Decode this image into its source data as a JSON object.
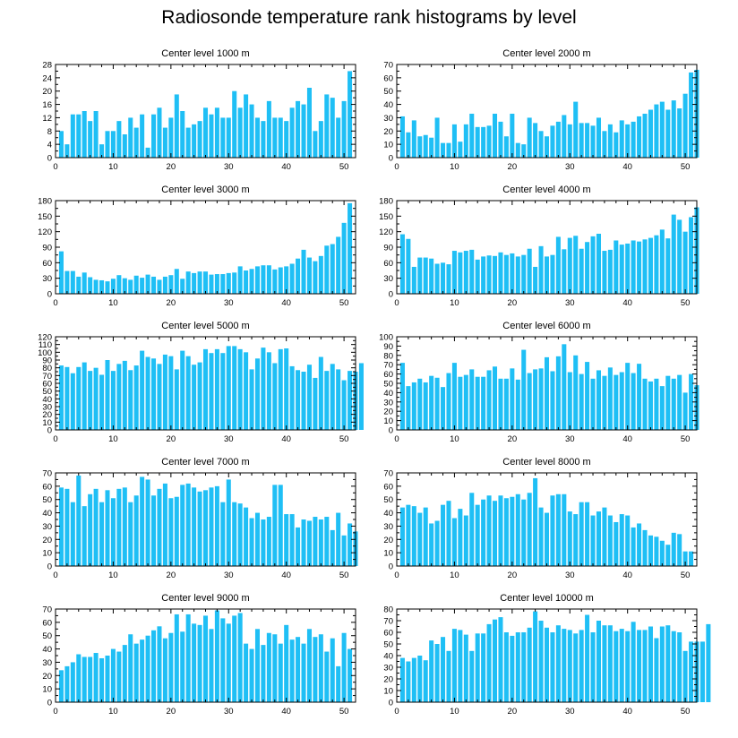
{
  "title": "Radiosonde temperature rank histograms by level",
  "colors": {
    "bar": "#1fbff5",
    "frame": "#000000"
  },
  "chart_data": [
    {
      "type": "bar",
      "title": "Center level 1000 m",
      "xlim": [
        0,
        52
      ],
      "ylim": [
        0,
        28
      ],
      "xticks": [
        0,
        10,
        20,
        30,
        40,
        50
      ],
      "yticks": [
        0,
        4,
        8,
        12,
        16,
        20,
        24,
        28
      ],
      "values": [
        8,
        4,
        13,
        13,
        14,
        11,
        14,
        4,
        8,
        8,
        11,
        7,
        12,
        9,
        13,
        3,
        13,
        15,
        9,
        12,
        19,
        14,
        9,
        10,
        11,
        15,
        13,
        15,
        12,
        12,
        20,
        15,
        19,
        16,
        12,
        11,
        17,
        12,
        12,
        11,
        15,
        17,
        16,
        21,
        8,
        11,
        19,
        18,
        12,
        17,
        26
      ]
    },
    {
      "type": "bar",
      "title": "Center level 2000 m",
      "xlim": [
        0,
        52
      ],
      "ylim": [
        0,
        70
      ],
      "xticks": [
        0,
        10,
        20,
        30,
        40,
        50
      ],
      "yticks": [
        0,
        10,
        20,
        30,
        40,
        50,
        60,
        70
      ],
      "values": [
        31,
        19,
        28,
        16,
        17,
        15,
        30,
        11,
        11,
        25,
        12,
        25,
        33,
        23,
        23,
        24,
        33,
        27,
        16,
        33,
        11,
        10,
        30,
        26,
        20,
        16,
        24,
        27,
        32,
        25,
        42,
        26,
        26,
        24,
        30,
        20,
        25,
        19,
        28,
        25,
        27,
        31,
        33,
        36,
        40,
        42,
        36,
        43,
        37,
        48,
        64,
        66
      ]
    },
    {
      "type": "bar",
      "title": "Center level 3000 m",
      "xlim": [
        0,
        52
      ],
      "ylim": [
        0,
        180
      ],
      "xticks": [
        0,
        10,
        20,
        30,
        40,
        50
      ],
      "yticks": [
        0,
        30,
        60,
        90,
        120,
        150,
        180
      ],
      "values": [
        82,
        44,
        44,
        33,
        41,
        32,
        27,
        26,
        24,
        29,
        36,
        30,
        27,
        35,
        31,
        37,
        33,
        27,
        33,
        36,
        48,
        29,
        43,
        40,
        43,
        43,
        37,
        38,
        38,
        40,
        41,
        53,
        45,
        48,
        53,
        55,
        55,
        47,
        51,
        53,
        58,
        68,
        85,
        70,
        63,
        73,
        93,
        96,
        110,
        137,
        175
      ]
    },
    {
      "type": "bar",
      "title": "Center level 4000 m",
      "xlim": [
        0,
        52
      ],
      "ylim": [
        0,
        180
      ],
      "xticks": [
        0,
        10,
        20,
        30,
        40,
        50
      ],
      "yticks": [
        0,
        30,
        60,
        90,
        120,
        150,
        180
      ],
      "values": [
        115,
        106,
        52,
        70,
        70,
        68,
        58,
        60,
        57,
        83,
        80,
        83,
        85,
        66,
        72,
        74,
        73,
        80,
        75,
        78,
        72,
        75,
        87,
        52,
        92,
        72,
        75,
        110,
        86,
        108,
        112,
        87,
        100,
        111,
        116,
        83,
        85,
        103,
        95,
        97,
        103,
        101,
        105,
        108,
        113,
        124,
        107,
        153,
        143,
        120,
        148,
        167
      ]
    },
    {
      "type": "bar",
      "title": "Center level 5000 m",
      "xlim": [
        0,
        52
      ],
      "ylim": [
        0,
        120
      ],
      "xticks": [
        0,
        10,
        20,
        30,
        40,
        50
      ],
      "yticks": [
        0,
        10,
        20,
        30,
        40,
        50,
        60,
        70,
        80,
        90,
        100,
        110,
        120
      ],
      "values": [
        83,
        81,
        73,
        81,
        87,
        76,
        80,
        71,
        90,
        76,
        85,
        89,
        77,
        83,
        102,
        94,
        92,
        85,
        97,
        95,
        78,
        102,
        95,
        84,
        87,
        104,
        99,
        104,
        99,
        108,
        108,
        104,
        100,
        78,
        92,
        106,
        100,
        86,
        104,
        105,
        82,
        77,
        75,
        84,
        67,
        94,
        76,
        85,
        78,
        64,
        76,
        75,
        86
      ]
    },
    {
      "type": "bar",
      "title": "Center level 6000 m",
      "xlim": [
        0,
        52
      ],
      "ylim": [
        0,
        100
      ],
      "xticks": [
        0,
        10,
        20,
        30,
        40,
        50
      ],
      "yticks": [
        0,
        10,
        20,
        30,
        40,
        50,
        60,
        70,
        80,
        90,
        100
      ],
      "values": [
        72,
        47,
        51,
        55,
        51,
        58,
        56,
        46,
        61,
        72,
        57,
        59,
        65,
        57,
        57,
        64,
        68,
        55,
        55,
        66,
        54,
        86,
        61,
        65,
        66,
        78,
        63,
        79,
        92,
        62,
        80,
        60,
        73,
        55,
        64,
        58,
        67,
        59,
        62,
        72,
        61,
        71,
        55,
        52,
        55,
        47,
        58,
        55,
        59,
        40,
        60,
        48
      ]
    },
    {
      "type": "bar",
      "title": "Center level 7000 m",
      "xlim": [
        0,
        52
      ],
      "ylim": [
        0,
        70
      ],
      "xticks": [
        0,
        10,
        20,
        30,
        40,
        50
      ],
      "yticks": [
        0,
        10,
        20,
        30,
        40,
        50,
        60,
        70
      ],
      "values": [
        59,
        58,
        48,
        68,
        45,
        54,
        58,
        48,
        57,
        51,
        58,
        59,
        48,
        53,
        67,
        65,
        53,
        58,
        62,
        51,
        52,
        61,
        62,
        59,
        56,
        57,
        59,
        60,
        48,
        65,
        48,
        47,
        44,
        36,
        40,
        35,
        37,
        61,
        61,
        39,
        39,
        29,
        35,
        34,
        37,
        35,
        37,
        27,
        40,
        23,
        32,
        26
      ]
    },
    {
      "type": "bar",
      "title": "Center level 8000 m",
      "xlim": [
        0,
        52
      ],
      "ylim": [
        0,
        70
      ],
      "xticks": [
        0,
        10,
        20,
        30,
        40,
        50
      ],
      "yticks": [
        0,
        10,
        20,
        30,
        40,
        50,
        60,
        70
      ],
      "values": [
        44,
        46,
        45,
        40,
        44,
        32,
        34,
        46,
        49,
        36,
        43,
        38,
        55,
        46,
        50,
        53,
        49,
        53,
        51,
        52,
        54,
        50,
        55,
        66,
        44,
        40,
        53,
        54,
        54,
        41,
        39,
        48,
        48,
        38,
        41,
        44,
        38,
        33,
        39,
        38,
        29,
        32,
        27,
        23,
        22,
        19,
        16,
        25,
        24,
        11,
        11
      ]
    },
    {
      "type": "bar",
      "title": "Center level 9000 m",
      "xlim": [
        0,
        52
      ],
      "ylim": [
        0,
        70
      ],
      "xticks": [
        0,
        10,
        20,
        30,
        40,
        50
      ],
      "yticks": [
        0,
        10,
        20,
        30,
        40,
        50,
        60,
        70
      ],
      "values": [
        24,
        27,
        30,
        36,
        34,
        34,
        37,
        33,
        35,
        40,
        38,
        43,
        51,
        44,
        47,
        50,
        54,
        57,
        48,
        52,
        66,
        53,
        66,
        59,
        58,
        65,
        55,
        69,
        63,
        59,
        65,
        67,
        44,
        40,
        55,
        43,
        52,
        51,
        44,
        58,
        47,
        49,
        44,
        55,
        49,
        51,
        38,
        48,
        27,
        52,
        40
      ]
    },
    {
      "type": "bar",
      "title": "Center level 10000 m",
      "xlim": [
        0,
        52
      ],
      "ylim": [
        0,
        80
      ],
      "xticks": [
        0,
        10,
        20,
        30,
        40,
        50
      ],
      "yticks": [
        0,
        10,
        20,
        30,
        40,
        50,
        60,
        70,
        80
      ],
      "values": [
        38,
        35,
        38,
        40,
        36,
        53,
        50,
        56,
        44,
        63,
        62,
        58,
        44,
        59,
        59,
        67,
        71,
        73,
        60,
        57,
        60,
        60,
        64,
        78,
        70,
        64,
        60,
        66,
        63,
        62,
        59,
        62,
        75,
        60,
        70,
        66,
        66,
        61,
        63,
        61,
        69,
        62,
        62,
        65,
        55,
        65,
        66,
        61,
        60,
        44,
        52,
        52,
        52,
        67
      ]
    }
  ]
}
